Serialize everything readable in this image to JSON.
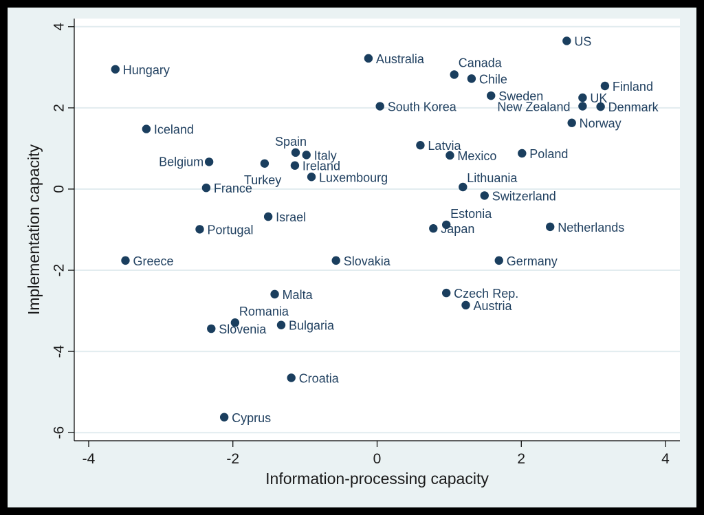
{
  "chart_data": {
    "type": "scatter",
    "xlabel": "Information-processing capacity",
    "ylabel": "Implementation capacity",
    "xlim": [
      -4.2,
      4.2
    ],
    "ylim": [
      -6.2,
      4.2
    ],
    "xticks": [
      -4,
      -2,
      0,
      2,
      4
    ],
    "yticks": [
      -6,
      -4,
      -2,
      0,
      2,
      4
    ],
    "xtick_labels": [
      "-4",
      "-2",
      "0",
      "2",
      "4"
    ],
    "ytick_labels": [
      "-6",
      "-4",
      "-2",
      "0",
      "2",
      "4"
    ],
    "grid": true,
    "marker_color": "#1a3e5e",
    "plot_background": "#ffffff",
    "outer_background": "#eaf2f3",
    "grid_color": "#e2ecef",
    "points": [
      {
        "label": "US",
        "x": 2.63,
        "y": 3.65
      },
      {
        "label": "Australia",
        "x": -0.12,
        "y": 3.22
      },
      {
        "label": "Hungary",
        "x": -3.63,
        "y": 2.95
      },
      {
        "label": "Canada",
        "x": 1.07,
        "y": 2.82
      },
      {
        "label": "Chile",
        "x": 1.31,
        "y": 2.72
      },
      {
        "label": "Finland",
        "x": 3.16,
        "y": 2.54
      },
      {
        "label": "Sweden",
        "x": 1.58,
        "y": 2.3
      },
      {
        "label": "UK",
        "x": 2.85,
        "y": 2.25
      },
      {
        "label": "South Korea",
        "x": 0.04,
        "y": 2.04
      },
      {
        "label": "New Zealand",
        "x": 2.85,
        "y": 2.04
      },
      {
        "label": "Denmark",
        "x": 3.1,
        "y": 2.03
      },
      {
        "label": "Norway",
        "x": 2.7,
        "y": 1.63
      },
      {
        "label": "Iceland",
        "x": -3.2,
        "y": 1.48
      },
      {
        "label": "Latvia",
        "x": 0.6,
        "y": 1.08
      },
      {
        "label": "Spain",
        "x": -1.13,
        "y": 0.9
      },
      {
        "label": "Poland",
        "x": 2.01,
        "y": 0.88
      },
      {
        "label": "Italy",
        "x": -0.98,
        "y": 0.84
      },
      {
        "label": "Mexico",
        "x": 1.01,
        "y": 0.83
      },
      {
        "label": "Belgium",
        "x": -2.33,
        "y": 0.67
      },
      {
        "label": "Turkey",
        "x": -1.56,
        "y": 0.63
      },
      {
        "label": "Ireland",
        "x": -1.14,
        "y": 0.58
      },
      {
        "label": "Luxembourg",
        "x": -0.91,
        "y": 0.3
      },
      {
        "label": "Lithuania",
        "x": 1.19,
        "y": 0.05
      },
      {
        "label": "France",
        "x": -2.37,
        "y": 0.03
      },
      {
        "label": "Switzerland",
        "x": 1.49,
        "y": -0.16
      },
      {
        "label": "Israel",
        "x": -1.51,
        "y": -0.68
      },
      {
        "label": "Estonia",
        "x": 0.96,
        "y": -0.88
      },
      {
        "label": "Netherlands",
        "x": 2.4,
        "y": -0.93
      },
      {
        "label": "Portugal",
        "x": -2.46,
        "y": -0.99
      },
      {
        "label": "Japan",
        "x": 0.78,
        "y": -0.97
      },
      {
        "label": "Greece",
        "x": -3.49,
        "y": -1.76
      },
      {
        "label": "Slovakia",
        "x": -0.57,
        "y": -1.76
      },
      {
        "label": "Germany",
        "x": 1.69,
        "y": -1.76
      },
      {
        "label": "Czech Rep.",
        "x": 0.96,
        "y": -2.56
      },
      {
        "label": "Malta",
        "x": -1.42,
        "y": -2.59
      },
      {
        "label": "Austria",
        "x": 1.23,
        "y": -2.86
      },
      {
        "label": "Romania",
        "x": -1.97,
        "y": -3.29
      },
      {
        "label": "Bulgaria",
        "x": -1.33,
        "y": -3.35
      },
      {
        "label": "Slovenia",
        "x": -2.3,
        "y": -3.44
      },
      {
        "label": "Croatia",
        "x": -1.19,
        "y": -4.65
      },
      {
        "label": "Cyprus",
        "x": -2.12,
        "y": -5.62
      }
    ]
  }
}
